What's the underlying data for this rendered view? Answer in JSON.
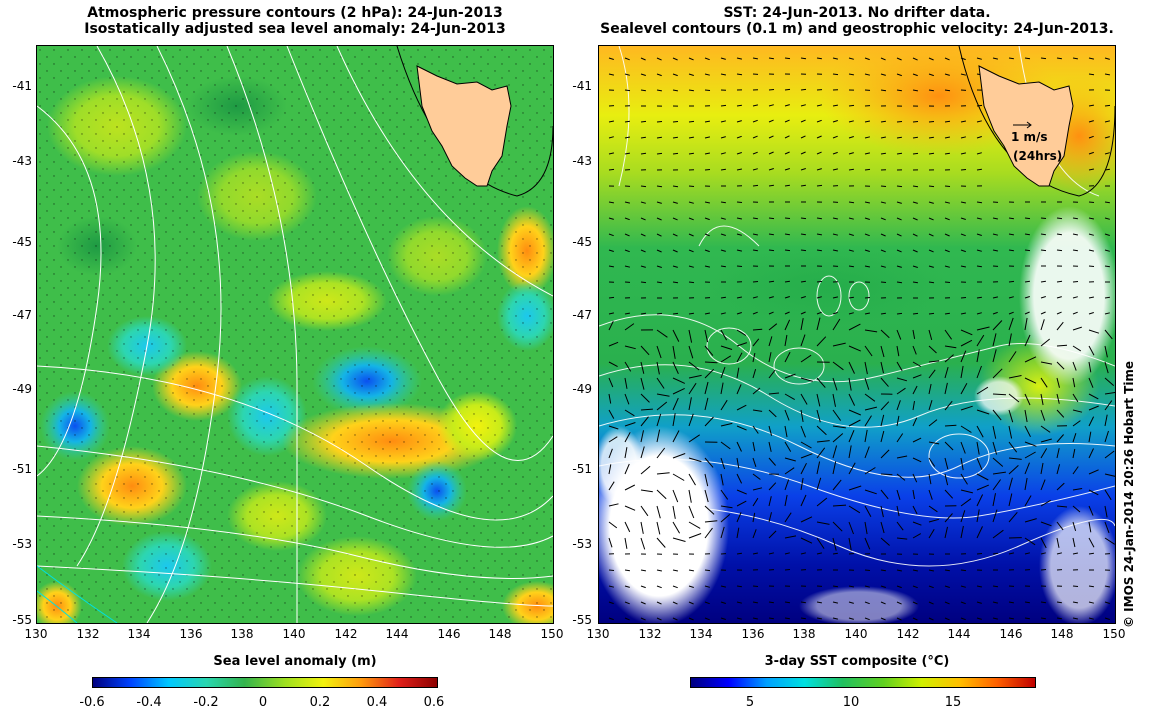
{
  "left_panel": {
    "title_line1": "Atmospheric pressure contours (2 hPa): 24-Jun-2013",
    "title_line2": "Isostatically adjusted sea level anomaly: 24-Jun-2013",
    "colorbar_label": "Sea level anomaly (m)",
    "colorbar_ticks": [
      "-0.6",
      "-0.4",
      "-0.2",
      "0",
      "0.2",
      "0.4",
      "0.6"
    ],
    "colormap": [
      "#00007f",
      "#0044ff",
      "#00c8ff",
      "#29d6b0",
      "#33b34d",
      "#9fe01f",
      "#f2f20d",
      "#ff9a0d",
      "#e0201a",
      "#8c0000"
    ]
  },
  "right_panel": {
    "title_line1": "SST: 24-Jun-2013. No drifter data.",
    "title_line2": "Sealevel contours (0.1 m) and geostrophic velocity: 24-Jun-2013.",
    "colorbar_label": "3-day SST composite (°C)",
    "colorbar_ticks": [
      "5",
      "10",
      "15"
    ],
    "velocity_scale": "1 m/s",
    "velocity_scale_sub": "(24hrs)",
    "colormap": [
      "#00007f",
      "#0000ff",
      "#00a0ff",
      "#00e0e0",
      "#20c060",
      "#60d020",
      "#d0f000",
      "#ffc000",
      "#ff6000",
      "#c00000"
    ]
  },
  "axes": {
    "lat_ticks": [
      "-41",
      "-43",
      "-45",
      "-47",
      "-49",
      "-51",
      "-53",
      "-55"
    ],
    "lon_ticks": [
      "130",
      "132",
      "134",
      "136",
      "138",
      "140",
      "142",
      "144",
      "146",
      "148",
      "150"
    ],
    "lon_range": [
      130,
      150
    ],
    "lat_range": [
      -55,
      -40.2
    ]
  },
  "land_color": "#ffcc99",
  "credit": "© IMOS 24-Jan-2014 20:26 Hobart Time"
}
